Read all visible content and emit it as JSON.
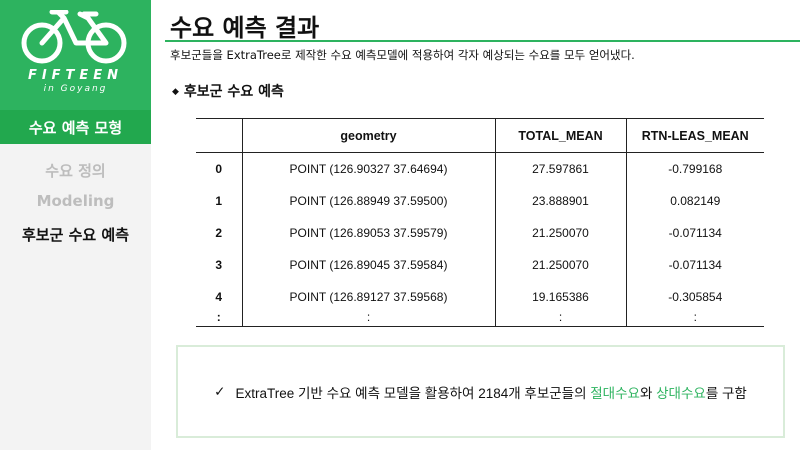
{
  "sidebar": {
    "logo": {
      "title": "FIFTEEN",
      "subtitle": "in Goyang"
    },
    "section": "수요 예측 모형",
    "nav": [
      {
        "label": "수요 정의",
        "active": false
      },
      {
        "label": "Modeling",
        "active": false
      },
      {
        "label": "후보군 수요 예측",
        "active": true
      }
    ]
  },
  "main": {
    "title": "수요 예측 결과",
    "subtitle": "후보군들을 ExtraTree로 제작한 수요 예측모델에 적용하여 각자 예상되는 수요를 모두 얻어냈다.",
    "section_heading": "후보군 수요 예측",
    "table": {
      "columns": [
        "",
        "geometry",
        "TOTAL_MEAN",
        "RTN-LEAS_MEAN"
      ],
      "rows": [
        [
          "0",
          "POINT (126.90327  37.64694)",
          "27.597861",
          "-0.799168"
        ],
        [
          "1",
          "POINT (126.88949  37.59500)",
          "23.888901",
          "0.082149"
        ],
        [
          "2",
          "POINT (126.89053  37.59579)",
          "21.250070",
          "-0.071134"
        ],
        [
          "3",
          "POINT (126.89045  37.59584)",
          "21.250070",
          "-0.071134"
        ],
        [
          "4",
          "POINT (126.89127  37.59568)",
          "19.165386",
          "-0.305854"
        ]
      ],
      "ellipsis": [
        ":",
        ":",
        ":",
        ":"
      ]
    },
    "summary": {
      "check": "✓",
      "before": "ExtraTree 기반 수요 예측 모델을 활용하여 2184개 후보군들의 ",
      "highlight1": "절대수요",
      "middle": "와 ",
      "highlight2": "상대수요",
      "after": "를 구함"
    }
  },
  "colors": {
    "accent": "#2db35f",
    "accent_dark": "#22a84e",
    "sidebar_bg": "#f3f3f3",
    "inactive_text": "#bdbdbd"
  }
}
